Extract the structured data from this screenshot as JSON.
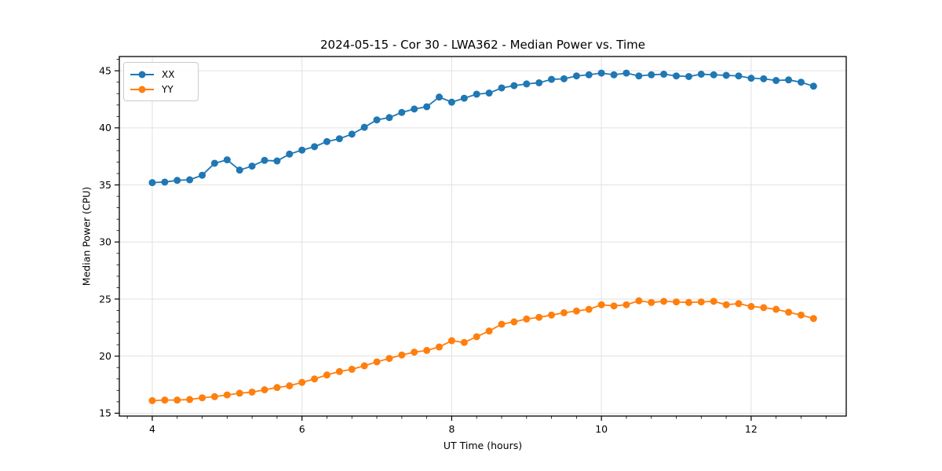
{
  "figure": {
    "title": "2024-05-15 - Cor 30 - LWA362 - Median Power vs. Time"
  },
  "chart_data": {
    "type": "line",
    "title": "2024-05-15 - Cor 30 - LWA362 - Median Power vs. Time",
    "xlabel": "UT Time (hours)",
    "ylabel": "Median Power (CPU)",
    "xlim": [
      3.56,
      13.27
    ],
    "ylim": [
      14.75,
      46.25
    ],
    "xticks": [
      4,
      6,
      8,
      10,
      12
    ],
    "yticks": [
      15,
      20,
      25,
      30,
      35,
      40,
      45
    ],
    "x_minor_step": 0.33333,
    "y_minor_step": 1,
    "grid": true,
    "grid_color": "#e1e1e1",
    "legend_position": "upper-left",
    "x": [
      4.0,
      4.167,
      4.333,
      4.5,
      4.667,
      4.833,
      5.0,
      5.167,
      5.333,
      5.5,
      5.667,
      5.833,
      6.0,
      6.167,
      6.333,
      6.5,
      6.667,
      6.833,
      7.0,
      7.167,
      7.333,
      7.5,
      7.667,
      7.833,
      8.0,
      8.167,
      8.333,
      8.5,
      8.667,
      8.833,
      9.0,
      9.167,
      9.333,
      9.5,
      9.667,
      9.833,
      10.0,
      10.167,
      10.333,
      10.5,
      10.667,
      10.833,
      11.0,
      11.167,
      11.333,
      11.5,
      11.667,
      11.833,
      12.0,
      12.167,
      12.333,
      12.5,
      12.667,
      12.833
    ],
    "series": [
      {
        "name": "XX",
        "color": "#1f77b4",
        "values": [
          35.2,
          35.25,
          35.4,
          35.45,
          35.85,
          36.9,
          37.2,
          36.3,
          36.65,
          37.15,
          37.1,
          37.7,
          38.05,
          38.35,
          38.8,
          39.05,
          39.45,
          40.05,
          40.7,
          40.9,
          41.35,
          41.65,
          41.85,
          42.7,
          42.25,
          42.6,
          42.95,
          43.05,
          43.5,
          43.7,
          43.85,
          43.95,
          44.25,
          44.3,
          44.55,
          44.65,
          44.8,
          44.65,
          44.8,
          44.55,
          44.65,
          44.7,
          44.55,
          44.5,
          44.7,
          44.65,
          44.6,
          44.55,
          44.35,
          44.3,
          44.15,
          44.2,
          44.0,
          43.65
        ]
      },
      {
        "name": "YY",
        "color": "#ff7f0e",
        "values": [
          16.1,
          16.15,
          16.15,
          16.2,
          16.35,
          16.45,
          16.6,
          16.75,
          16.85,
          17.05,
          17.25,
          17.4,
          17.7,
          18.0,
          18.35,
          18.65,
          18.85,
          19.15,
          19.5,
          19.8,
          20.1,
          20.35,
          20.5,
          20.8,
          21.35,
          21.2,
          21.7,
          22.2,
          22.8,
          23.0,
          23.25,
          23.4,
          23.6,
          23.8,
          23.95,
          24.1,
          24.5,
          24.4,
          24.5,
          24.85,
          24.7,
          24.8,
          24.75,
          24.7,
          24.75,
          24.8,
          24.5,
          24.6,
          24.35,
          24.25,
          24.1,
          23.85,
          23.6,
          23.3
        ]
      }
    ]
  }
}
